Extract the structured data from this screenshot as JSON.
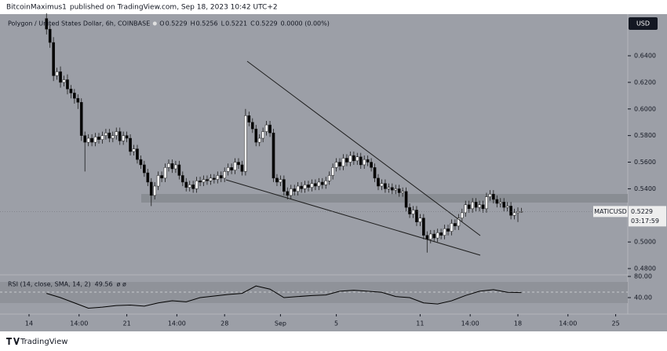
{
  "header": {
    "author": "BitcoinMaximus1",
    "text": "published on TradingView.com, Sep 18, 2023 10:42 UTC+2"
  },
  "footer": "TradingView",
  "chart_data": [
    {
      "type": "candlestick",
      "title": "Polygon / United States Dollar, 6h, COINBASE",
      "ohlc_legend": [
        {
          "key": "O",
          "value": 0.5229
        },
        {
          "key": "H",
          "value": 0.5256
        },
        {
          "key": "L",
          "value": 0.5221
        },
        {
          "key": "C",
          "value": 0.5229
        }
      ],
      "change": "0.0000 (0.00%)",
      "currency": "USD",
      "last_price": {
        "name": "MATICUSD",
        "value": 0.5229,
        "countdown": "03:17:59"
      },
      "up_color": "#ffffff",
      "down_color": "#000000",
      "xlim": [
        -2.079,
        42.865
      ],
      "xticks": [
        {
          "value": 0,
          "label": "14"
        },
        {
          "value": 3.583,
          "label": "14:00"
        },
        {
          "value": 7,
          "label": "21"
        },
        {
          "value": 10.583,
          "label": "14:00"
        },
        {
          "value": 14,
          "label": "28"
        },
        {
          "value": 18,
          "label": "Sep"
        },
        {
          "value": 22,
          "label": "5"
        },
        {
          "value": 28,
          "label": "11"
        },
        {
          "value": 31.583,
          "label": "14:00"
        },
        {
          "value": 35,
          "label": "18"
        },
        {
          "value": 38.583,
          "label": "14:00"
        },
        {
          "value": 42,
          "label": "25"
        }
      ],
      "ylim": [
        0.4753,
        0.6713
      ],
      "yticks": [
        {
          "value": 0.64,
          "label": "0.6400"
        },
        {
          "value": 0.62,
          "label": "0.6200"
        },
        {
          "value": 0.6,
          "label": "0.6000"
        },
        {
          "value": 0.58,
          "label": "0.5800"
        },
        {
          "value": 0.56,
          "label": "0.5600"
        },
        {
          "value": 0.54,
          "label": "0.5400"
        },
        {
          "value": 0.5,
          "label": "0.5000"
        },
        {
          "value": 0.48,
          "label": "0.4800"
        }
      ],
      "x": [
        1.25,
        1.5,
        1.75,
        2,
        2.25,
        2.5,
        2.75,
        3,
        3.25,
        3.5,
        3.75,
        4,
        4.25,
        4.5,
        4.75,
        5,
        5.25,
        5.5,
        5.75,
        6,
        6.25,
        6.5,
        6.75,
        7,
        7.25,
        7.5,
        7.75,
        8,
        8.25,
        8.5,
        8.75,
        9,
        9.25,
        9.5,
        9.75,
        10,
        10.25,
        10.5,
        10.75,
        11,
        11.25,
        11.5,
        11.75,
        12,
        12.25,
        12.5,
        12.75,
        13,
        13.25,
        13.5,
        13.75,
        14,
        14.25,
        14.5,
        14.75,
        15,
        15.25,
        15.5,
        15.75,
        16,
        16.25,
        16.5,
        16.75,
        17,
        17.25,
        17.5,
        17.75,
        18,
        18.25,
        18.5,
        18.75,
        19,
        19.25,
        19.5,
        19.75,
        20,
        20.25,
        20.5,
        20.75,
        21,
        21.25,
        21.5,
        21.75,
        22,
        22.25,
        22.5,
        22.75,
        23,
        23.25,
        23.5,
        23.75,
        24,
        24.25,
        24.5,
        24.75,
        25,
        25.25,
        25.5,
        25.75,
        26,
        26.25,
        26.5,
        26.75,
        27,
        27.25,
        27.5,
        27.75,
        28,
        28.25,
        28.5,
        28.75,
        29,
        29.25,
        29.5,
        29.75,
        30,
        30.25,
        30.5,
        30.75,
        31,
        31.25,
        31.5,
        31.75,
        32,
        32.25,
        32.5,
        32.75,
        33,
        33.25,
        33.5,
        33.75,
        34,
        34.25,
        34.5,
        34.75,
        35,
        35.25
      ],
      "open": [
        0.668,
        0.66,
        0.65,
        0.625,
        0.628,
        0.62,
        0.622,
        0.615,
        0.612,
        0.608,
        0.605,
        0.58,
        0.575,
        0.578,
        0.575,
        0.579,
        0.577,
        0.58,
        0.582,
        0.578,
        0.58,
        0.583,
        0.576,
        0.58,
        0.578,
        0.568,
        0.57,
        0.562,
        0.558,
        0.552,
        0.545,
        0.535,
        0.542,
        0.55,
        0.548,
        0.556,
        0.559,
        0.555,
        0.558,
        0.55,
        0.545,
        0.541,
        0.543,
        0.54,
        0.546,
        0.545,
        0.547,
        0.546,
        0.548,
        0.547,
        0.55,
        0.548,
        0.553,
        0.556,
        0.554,
        0.56,
        0.558,
        0.553,
        0.595,
        0.59,
        0.585,
        0.575,
        0.578,
        0.583,
        0.588,
        0.582,
        0.548,
        0.545,
        0.547,
        0.538,
        0.535,
        0.54,
        0.538,
        0.542,
        0.54,
        0.543,
        0.541,
        0.544,
        0.542,
        0.545,
        0.543,
        0.546,
        0.55,
        0.556,
        0.56,
        0.557,
        0.563,
        0.56,
        0.565,
        0.561,
        0.564,
        0.558,
        0.562,
        0.56,
        0.556,
        0.548,
        0.542,
        0.544,
        0.54,
        0.541,
        0.539,
        0.54,
        0.537,
        0.538,
        0.526,
        0.521,
        0.524,
        0.515,
        0.518,
        0.505,
        0.502,
        0.506,
        0.503,
        0.507,
        0.505,
        0.51,
        0.508,
        0.514,
        0.512,
        0.518,
        0.522,
        0.528,
        0.525,
        0.53,
        0.526,
        0.528,
        0.525,
        0.534,
        0.536,
        0.532,
        0.529,
        0.53,
        0.526,
        0.527,
        0.52,
        0.522,
        0.5229
      ],
      "high": [
        0.672,
        0.664,
        0.654,
        0.631,
        0.632,
        0.625,
        0.626,
        0.618,
        0.615,
        0.611,
        0.608,
        0.583,
        0.581,
        0.581,
        0.582,
        0.582,
        0.583,
        0.585,
        0.585,
        0.583,
        0.586,
        0.586,
        0.583,
        0.583,
        0.581,
        0.573,
        0.573,
        0.565,
        0.561,
        0.555,
        0.548,
        0.545,
        0.553,
        0.553,
        0.559,
        0.562,
        0.562,
        0.561,
        0.561,
        0.553,
        0.548,
        0.546,
        0.546,
        0.549,
        0.549,
        0.55,
        0.55,
        0.551,
        0.551,
        0.553,
        0.553,
        0.556,
        0.559,
        0.559,
        0.563,
        0.563,
        0.561,
        0.6,
        0.598,
        0.593,
        0.588,
        0.581,
        0.586,
        0.591,
        0.591,
        0.585,
        0.551,
        0.55,
        0.55,
        0.541,
        0.543,
        0.543,
        0.545,
        0.545,
        0.546,
        0.546,
        0.547,
        0.547,
        0.548,
        0.548,
        0.549,
        0.553,
        0.559,
        0.563,
        0.563,
        0.566,
        0.566,
        0.568,
        0.568,
        0.567,
        0.567,
        0.565,
        0.565,
        0.563,
        0.559,
        0.551,
        0.547,
        0.547,
        0.544,
        0.544,
        0.543,
        0.543,
        0.541,
        0.541,
        0.529,
        0.527,
        0.527,
        0.521,
        0.521,
        0.508,
        0.509,
        0.509,
        0.51,
        0.51,
        0.513,
        0.513,
        0.517,
        0.517,
        0.521,
        0.525,
        0.531,
        0.531,
        0.533,
        0.533,
        0.531,
        0.531,
        0.537,
        0.539,
        0.539,
        0.535,
        0.533,
        0.533,
        0.53,
        0.53,
        0.525,
        0.526,
        0.5256
      ],
      "low": [
        0.656,
        0.646,
        0.621,
        0.622,
        0.616,
        0.617,
        0.611,
        0.608,
        0.604,
        0.6,
        0.576,
        0.553,
        0.572,
        0.572,
        0.572,
        0.574,
        0.574,
        0.577,
        0.575,
        0.575,
        0.577,
        0.573,
        0.573,
        0.575,
        0.565,
        0.565,
        0.559,
        0.555,
        0.549,
        0.542,
        0.527,
        0.532,
        0.539,
        0.545,
        0.545,
        0.553,
        0.552,
        0.552,
        0.547,
        0.542,
        0.538,
        0.538,
        0.537,
        0.537,
        0.542,
        0.542,
        0.543,
        0.543,
        0.544,
        0.544,
        0.545,
        0.545,
        0.55,
        0.551,
        0.551,
        0.555,
        0.55,
        0.55,
        0.587,
        0.582,
        0.572,
        0.572,
        0.575,
        0.58,
        0.579,
        0.545,
        0.542,
        0.542,
        0.535,
        0.532,
        0.532,
        0.535,
        0.535,
        0.537,
        0.537,
        0.538,
        0.538,
        0.539,
        0.539,
        0.54,
        0.54,
        0.543,
        0.547,
        0.553,
        0.554,
        0.554,
        0.557,
        0.557,
        0.558,
        0.558,
        0.555,
        0.555,
        0.557,
        0.553,
        0.545,
        0.539,
        0.539,
        0.537,
        0.537,
        0.536,
        0.536,
        0.534,
        0.534,
        0.523,
        0.518,
        0.518,
        0.512,
        0.512,
        0.502,
        0.492,
        0.499,
        0.5,
        0.5,
        0.502,
        0.502,
        0.505,
        0.505,
        0.509,
        0.509,
        0.515,
        0.519,
        0.522,
        0.522,
        0.523,
        0.523,
        0.522,
        0.522,
        0.531,
        0.529,
        0.526,
        0.526,
        0.523,
        0.523,
        0.517,
        0.517,
        0.515,
        0.5221
      ],
      "close": [
        0.66,
        0.65,
        0.625,
        0.628,
        0.62,
        0.622,
        0.615,
        0.612,
        0.608,
        0.605,
        0.58,
        0.575,
        0.578,
        0.575,
        0.579,
        0.577,
        0.58,
        0.582,
        0.578,
        0.58,
        0.583,
        0.576,
        0.58,
        0.578,
        0.568,
        0.57,
        0.562,
        0.558,
        0.552,
        0.545,
        0.535,
        0.542,
        0.55,
        0.548,
        0.556,
        0.559,
        0.555,
        0.558,
        0.55,
        0.545,
        0.541,
        0.543,
        0.54,
        0.546,
        0.545,
        0.547,
        0.546,
        0.548,
        0.547,
        0.55,
        0.548,
        0.553,
        0.556,
        0.554,
        0.56,
        0.558,
        0.553,
        0.595,
        0.59,
        0.585,
        0.575,
        0.578,
        0.583,
        0.588,
        0.582,
        0.548,
        0.545,
        0.547,
        0.538,
        0.535,
        0.54,
        0.538,
        0.542,
        0.54,
        0.543,
        0.541,
        0.544,
        0.542,
        0.545,
        0.543,
        0.546,
        0.55,
        0.556,
        0.56,
        0.557,
        0.563,
        0.56,
        0.565,
        0.561,
        0.564,
        0.558,
        0.562,
        0.56,
        0.556,
        0.548,
        0.542,
        0.544,
        0.54,
        0.541,
        0.539,
        0.54,
        0.537,
        0.538,
        0.526,
        0.521,
        0.524,
        0.515,
        0.518,
        0.505,
        0.502,
        0.506,
        0.503,
        0.507,
        0.505,
        0.51,
        0.508,
        0.514,
        0.512,
        0.518,
        0.522,
        0.528,
        0.525,
        0.53,
        0.526,
        0.528,
        0.525,
        0.534,
        0.536,
        0.532,
        0.529,
        0.53,
        0.526,
        0.527,
        0.52,
        0.522,
        0.5229,
        0.5229
      ]
    },
    {
      "type": "line",
      "title": "RSI (14, close, SMA, 14, 2)",
      "na_text": "ø ø",
      "color": "#000000",
      "ylim": [
        8.9,
        83
      ],
      "yticks": [
        {
          "value": 80,
          "label": "80.00"
        },
        {
          "value": 40,
          "label": "40.00"
        }
      ],
      "x": [
        1.25,
        2.25,
        3.25,
        4.25,
        5.25,
        6.25,
        7.25,
        8.25,
        9.25,
        10.25,
        11.25,
        12.25,
        13.25,
        14.25,
        15.25,
        16.25,
        17.25,
        18.25,
        19.25,
        20.25,
        21.25,
        22.25,
        23.25,
        24.25,
        25.25,
        26.25,
        27.25,
        28.25,
        29.25,
        30.25,
        31.25,
        32.25,
        33.25,
        34.25,
        35.25
      ],
      "values": [
        48,
        40,
        30,
        20,
        22,
        25,
        26,
        24,
        30,
        34,
        32,
        40,
        43,
        46,
        48,
        62,
        56,
        40,
        42,
        44,
        45,
        52,
        54,
        52,
        50,
        42,
        40,
        30,
        28,
        34,
        44,
        52,
        55,
        50,
        49.56
      ]
    }
  ]
}
